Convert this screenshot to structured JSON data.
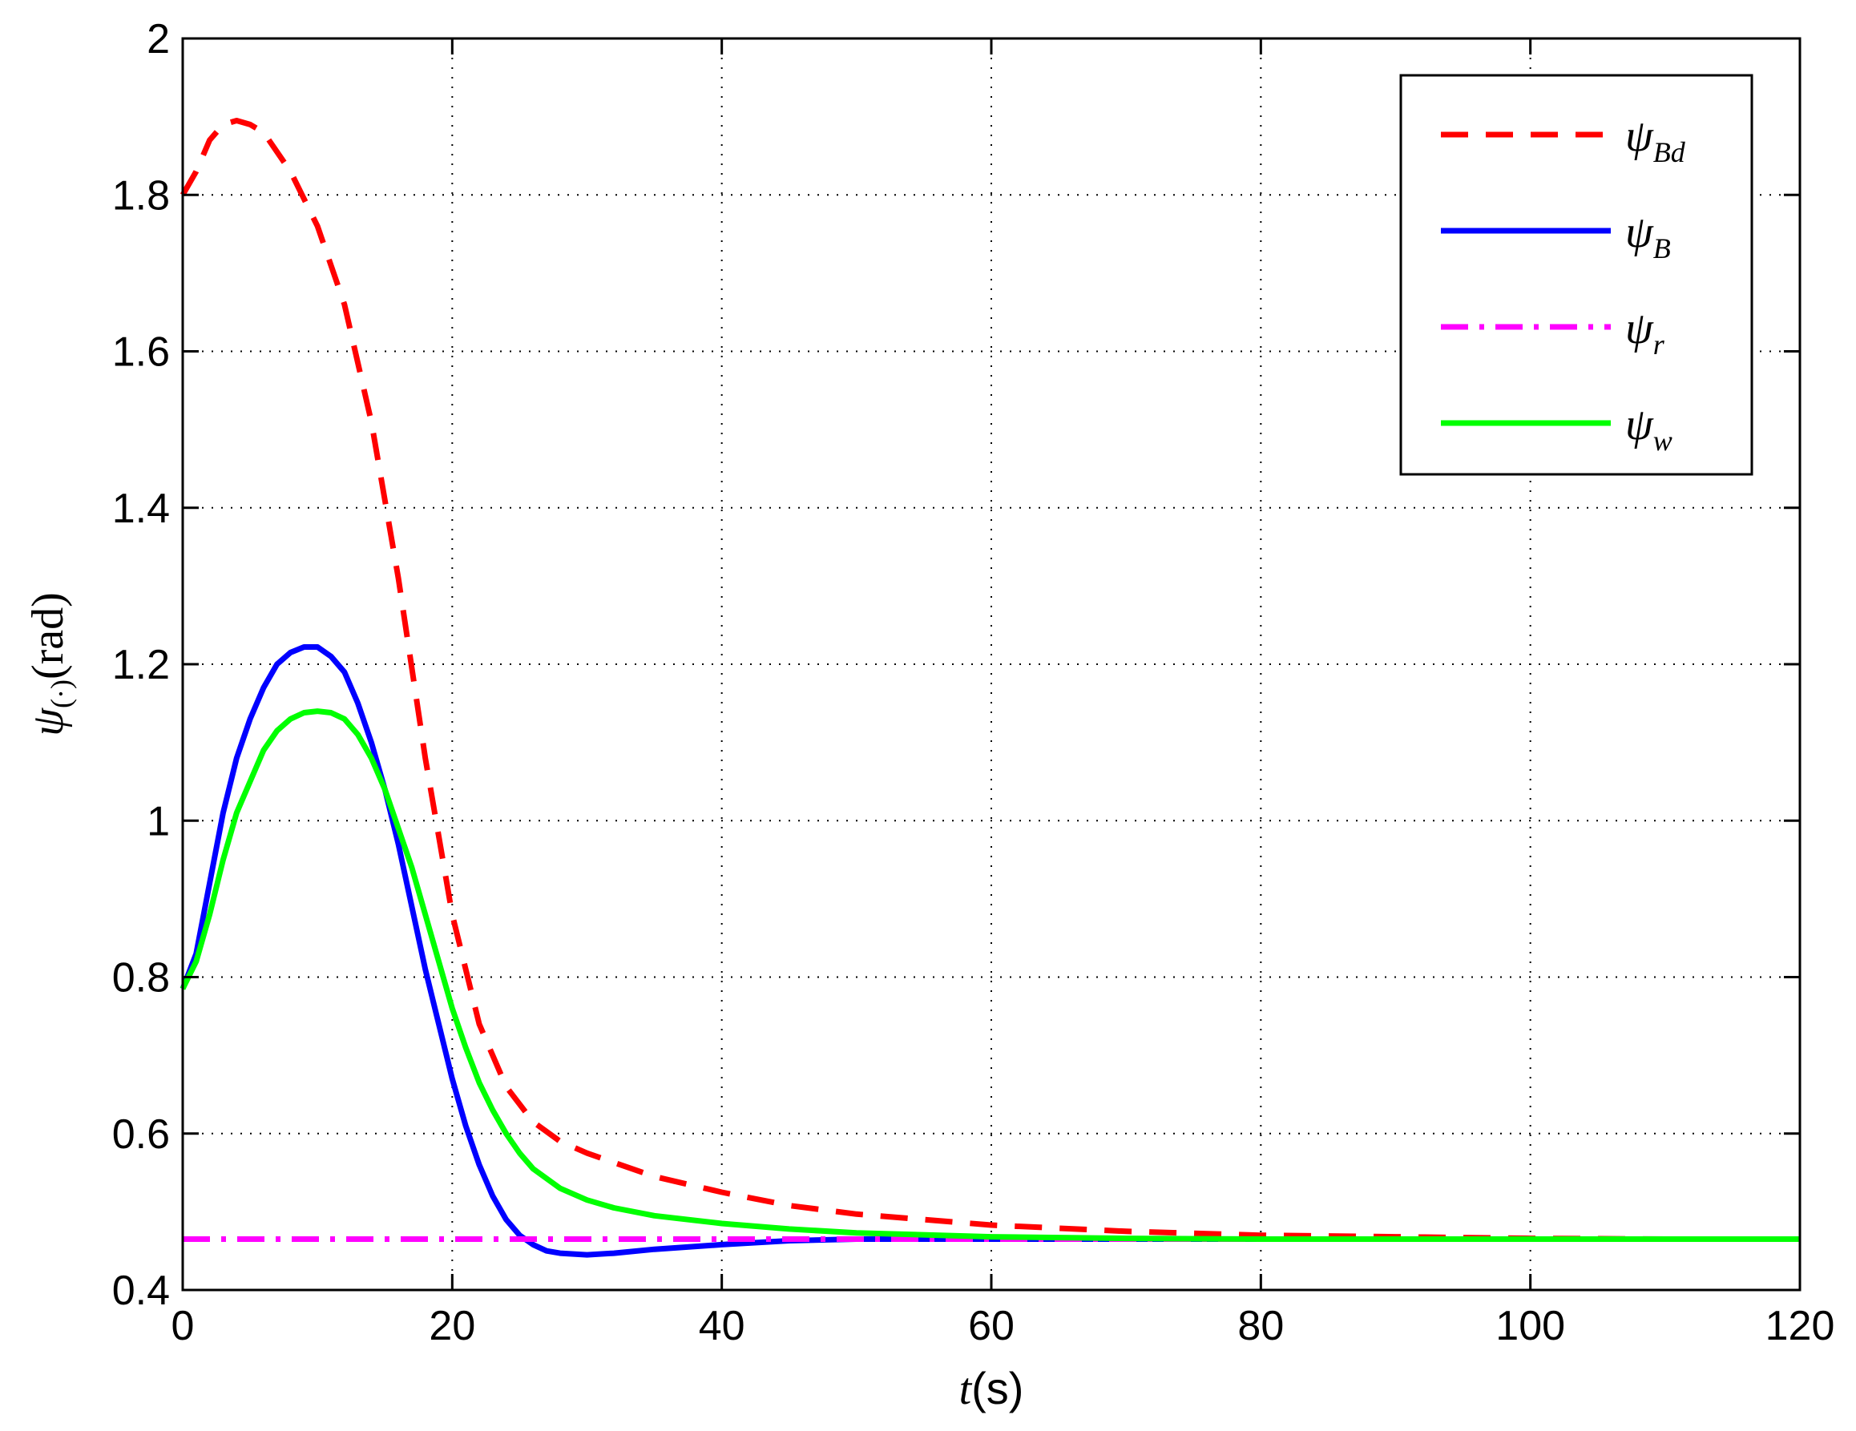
{
  "chart_data": {
    "type": "line",
    "xlabel": {
      "main": "t",
      "unit": "(s)"
    },
    "ylabel": {
      "main": "ψ",
      "sub": "(·)",
      "unit": "(rad)"
    },
    "xlim": [
      0,
      120
    ],
    "ylim": [
      0.4,
      2.0
    ],
    "xticks": [
      0,
      20,
      40,
      60,
      80,
      100,
      120
    ],
    "yticks": [
      0.4,
      0.6,
      0.8,
      1.0,
      1.2,
      1.4,
      1.6,
      1.8,
      2.0
    ],
    "xtick_labels": [
      "0",
      "20",
      "40",
      "60",
      "80",
      "100",
      "120"
    ],
    "ytick_labels": [
      "0.4",
      "0.6",
      "0.8",
      "1",
      "1.2",
      "1.4",
      "1.6",
      "1.8",
      "2"
    ],
    "grid": true,
    "legend_position": "top-right",
    "series": [
      {
        "name": "ψ_Bd",
        "symbol": "ψ",
        "subscript": "Bd",
        "color": "#ff0000",
        "style": "dashed",
        "x": [
          0,
          1,
          2,
          3,
          4,
          5,
          6,
          8,
          10,
          12,
          14,
          16,
          18,
          20,
          22,
          24,
          26,
          28,
          30,
          35,
          40,
          45,
          50,
          55,
          60,
          70,
          80,
          90,
          100,
          110,
          120
        ],
        "y": [
          1.8,
          1.83,
          1.87,
          1.89,
          1.895,
          1.89,
          1.88,
          1.83,
          1.76,
          1.66,
          1.51,
          1.31,
          1.08,
          0.88,
          0.74,
          0.66,
          0.615,
          0.59,
          0.575,
          0.545,
          0.525,
          0.508,
          0.497,
          0.49,
          0.483,
          0.475,
          0.47,
          0.468,
          0.466,
          0.465,
          0.465
        ]
      },
      {
        "name": "ψ_B",
        "symbol": "ψ",
        "subscript": "B",
        "color": "#0000ff",
        "style": "solid",
        "x": [
          0,
          1,
          2,
          3,
          4,
          5,
          6,
          7,
          8,
          9,
          10,
          11,
          12,
          13,
          14,
          15,
          16,
          17,
          18,
          19,
          20,
          21,
          22,
          23,
          24,
          25,
          26,
          27,
          28,
          30,
          32,
          35,
          40,
          45,
          50,
          60,
          80,
          100,
          120
        ],
        "y": [
          0.785,
          0.83,
          0.92,
          1.01,
          1.08,
          1.13,
          1.17,
          1.2,
          1.215,
          1.222,
          1.222,
          1.21,
          1.19,
          1.15,
          1.1,
          1.04,
          0.97,
          0.89,
          0.81,
          0.74,
          0.67,
          0.61,
          0.56,
          0.52,
          0.49,
          0.47,
          0.458,
          0.45,
          0.447,
          0.445,
          0.447,
          0.452,
          0.458,
          0.463,
          0.465,
          0.465,
          0.465,
          0.465,
          0.465
        ]
      },
      {
        "name": "ψ_r",
        "symbol": "ψ",
        "subscript": "r",
        "color": "#ff00ff",
        "style": "dashdot",
        "x": [
          0,
          120
        ],
        "y": [
          0.465,
          0.465
        ]
      },
      {
        "name": "ψ_w",
        "symbol": "ψ",
        "subscript": "w",
        "color": "#00ff00",
        "style": "solid",
        "x": [
          0,
          1,
          2,
          3,
          4,
          5,
          6,
          7,
          8,
          9,
          10,
          11,
          12,
          13,
          14,
          15,
          16,
          17,
          18,
          19,
          20,
          21,
          22,
          23,
          24,
          25,
          26,
          28,
          30,
          32,
          35,
          40,
          45,
          50,
          60,
          70,
          80,
          100,
          120
        ],
        "y": [
          0.785,
          0.82,
          0.88,
          0.95,
          1.01,
          1.05,
          1.09,
          1.115,
          1.13,
          1.138,
          1.14,
          1.138,
          1.13,
          1.11,
          1.08,
          1.04,
          0.99,
          0.94,
          0.88,
          0.82,
          0.76,
          0.71,
          0.665,
          0.63,
          0.6,
          0.575,
          0.555,
          0.53,
          0.515,
          0.505,
          0.495,
          0.485,
          0.478,
          0.473,
          0.468,
          0.466,
          0.465,
          0.465,
          0.465
        ]
      }
    ]
  }
}
